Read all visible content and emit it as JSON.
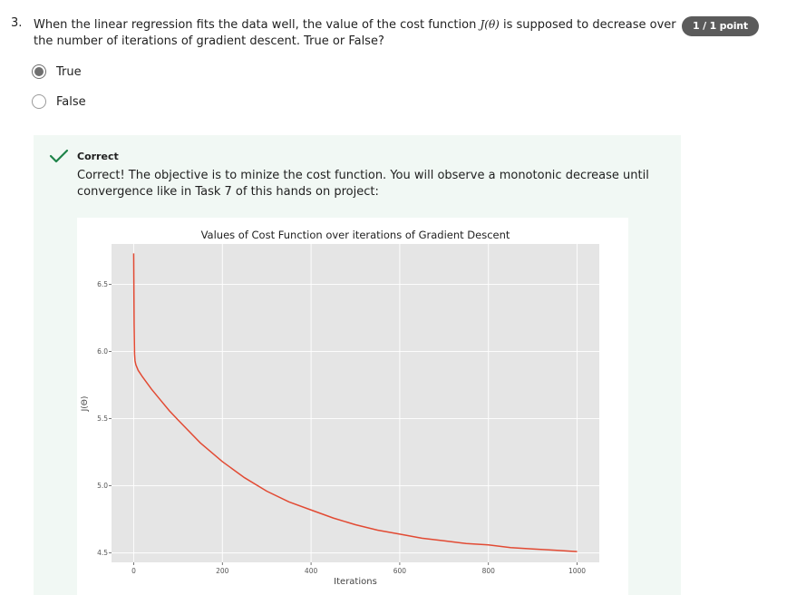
{
  "question": {
    "number": "3.",
    "text_before": "When the linear regression fits the data well, the value of the cost function ",
    "math": "J(θ)",
    "text_after": " is supposed to decrease over the number of iterations of gradient descent. True or False?",
    "points": "1 / 1 point"
  },
  "options": [
    {
      "label": "True",
      "selected": true
    },
    {
      "label": "False",
      "selected": false
    }
  ],
  "feedback": {
    "status": "Correct",
    "icon": "check-icon",
    "text": "Correct! The objective is to minize the cost function. You will observe a monotonic decrease until convergence like in Task 7 of this hands on project:"
  },
  "colors": {
    "badge": "#5b5b5b",
    "feedback_bg": "#f1f8f4",
    "check": "#1e8449",
    "plot_bg": "#e5e5e5",
    "grid": "#ffffff",
    "line": "#e24a33"
  },
  "chart_data": {
    "type": "line",
    "title": "Values of Cost Function over iterations of Gradient Descent",
    "xlabel": "Iterations",
    "ylabel": "J(Θ)",
    "xlim": [
      -50,
      1050
    ],
    "ylim": [
      4.43,
      6.8
    ],
    "xticks": [
      0,
      200,
      400,
      600,
      800,
      1000
    ],
    "yticks": [
      4.5,
      5.0,
      5.5,
      6.0,
      6.5
    ],
    "ytick_labels": [
      "4.5",
      "5.0",
      "5.5",
      "6.0",
      "6.5"
    ],
    "grid": true,
    "x": [
      0,
      1,
      2,
      3,
      5,
      10,
      20,
      40,
      60,
      80,
      100,
      150,
      200,
      250,
      300,
      350,
      400,
      450,
      500,
      550,
      600,
      650,
      700,
      750,
      800,
      850,
      900,
      950,
      1000
    ],
    "y": [
      6.73,
      6.2,
      5.98,
      5.93,
      5.9,
      5.86,
      5.81,
      5.72,
      5.64,
      5.56,
      5.49,
      5.32,
      5.18,
      5.06,
      4.96,
      4.88,
      4.82,
      4.76,
      4.71,
      4.67,
      4.64,
      4.61,
      4.59,
      4.57,
      4.56,
      4.54,
      4.53,
      4.52,
      4.51
    ]
  }
}
